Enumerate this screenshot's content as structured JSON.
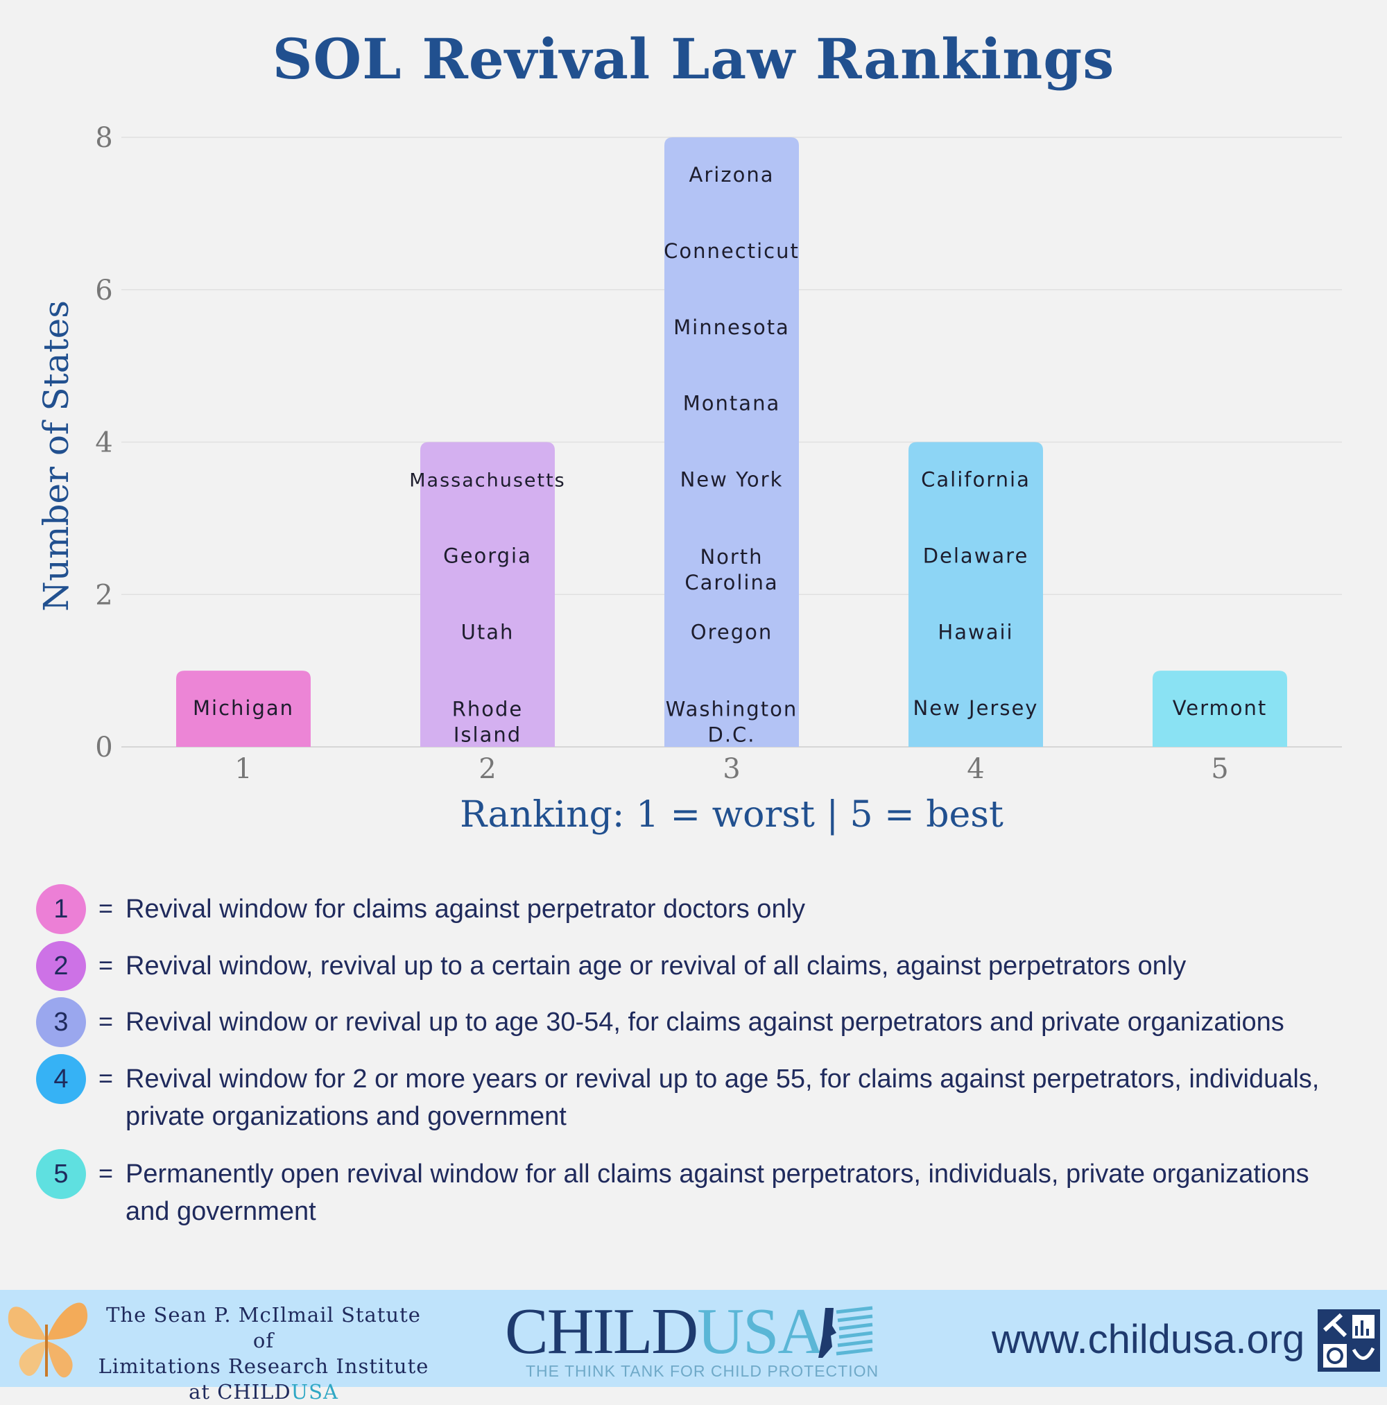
{
  "chart_data": {
    "type": "bar",
    "title": "SOL Revival Law Rankings",
    "xlabel": "Ranking: 1 = worst | 5 = best",
    "ylabel": "Number of States",
    "ylim": [
      0,
      8
    ],
    "yticks": [
      "0",
      "2",
      "4",
      "6",
      "8"
    ],
    "grid": true,
    "categories": [
      "1",
      "2",
      "3",
      "4",
      "5"
    ],
    "values": [
      1,
      4,
      8,
      4,
      1
    ],
    "colors": [
      "#ec85d6",
      "#d4b0f0",
      "#b3c3f5",
      "#8dd5f5",
      "#8ae2f3"
    ],
    "bar_labels": [
      [
        "Michigan"
      ],
      [
        "Massachusetts",
        "Georgia",
        "Utah",
        "Rhode\nIsland"
      ],
      [
        "Arizona",
        "Connecticut",
        "Minnesota",
        "Montana",
        "New York",
        "North\nCarolina",
        "Oregon",
        "Washington\nD.C."
      ],
      [
        "California",
        "Delaware",
        "Hawaii",
        "New Jersey"
      ],
      [
        "Vermont"
      ]
    ]
  },
  "legend": [
    {
      "badge": "1",
      "eq": "=",
      "text": "Revival window for claims against perpetrator doctors only",
      "color": "#ec7fd6"
    },
    {
      "badge": "2",
      "eq": "=",
      "text": "Revival window, revival up to a certain age or revival of all claims, against perpetrators only",
      "color": "#cd72e6"
    },
    {
      "badge": "3",
      "eq": "=",
      "text": "Revival window or revival up to age 30-54, for claims against perpetrators and private organizations",
      "color": "#9aa7ee"
    },
    {
      "badge": "4",
      "eq": "=",
      "text": "Revival window for 2 or more years or revival up to age 55, for claims against perpetrators, individuals, private organizations and government",
      "color": "#36b2f5"
    },
    {
      "badge": "5",
      "eq": "=",
      "text": "Permanently open revival window for all claims against perpetrators, individuals, private organizations and government",
      "color": "#5fe0e0"
    }
  ],
  "footer": {
    "institute_line1": "The Sean P. McIlmail Statute of",
    "institute_line2": "Limitations Research Institute",
    "institute_line3_prefix": "at CHILD",
    "institute_line3_suffix": "USA",
    "brand_child": "CHILD",
    "brand_usa": "USA",
    "tagline": "THE THINK TANK FOR CHILD PROTECTION",
    "website": "www.childusa.org"
  }
}
